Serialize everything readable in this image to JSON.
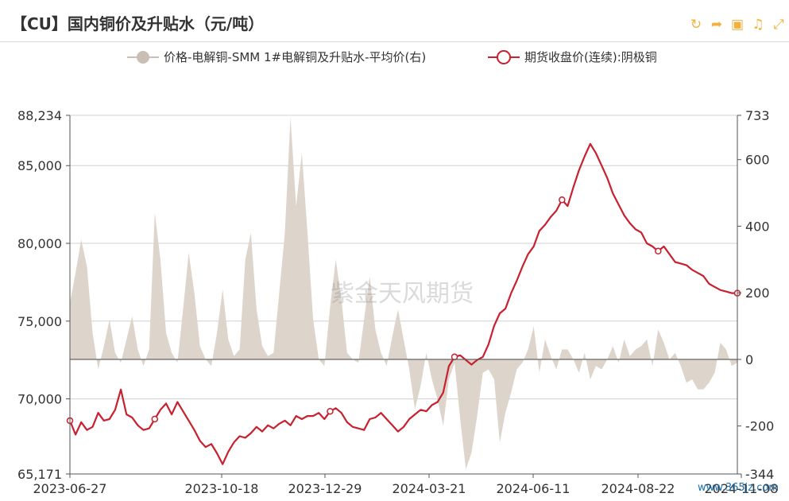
{
  "header": {
    "title": "【CU】国内铜价及升贴水（元/吨）",
    "icons": [
      "refresh-icon",
      "share-icon",
      "image-icon",
      "bell-icon",
      "expand-icon"
    ]
  },
  "watermark": "紫金天风期货",
  "source_mark": "www.365jz.com",
  "colors": {
    "area": "#ddd5cb",
    "line": "#c8202e",
    "grid": "#d0d0d0",
    "icon": "#f2b13c"
  },
  "chart_data": {
    "type": "line",
    "left_axis": {
      "min": 65171,
      "max": 88234,
      "ticks": [
        "65,171",
        "70,000",
        "75,000",
        "80,000",
        "85,000",
        "88,234"
      ]
    },
    "right_axis": {
      "min": -344,
      "max": 733,
      "ticks": [
        "-344",
        "-200",
        "0",
        "200",
        "400",
        "600",
        "733"
      ]
    },
    "x_axis": {
      "labels": [
        "2023-06-27",
        "2023-10-18",
        "2023-12-29",
        "2024-03-21",
        "2024-06-11",
        "2024-08-22",
        "2024-11-08"
      ]
    },
    "grid": "horizontal",
    "legend_position": "top-center",
    "series": [
      {
        "name": "价格-电解铜-SMM 1#电解铜及升贴水-平均价(右)",
        "kind": "area",
        "axis": "right",
        "color": "#ddd5cb",
        "points": [
          [
            0,
            170
          ],
          [
            2,
            260
          ],
          [
            4,
            360
          ],
          [
            6,
            280
          ],
          [
            8,
            80
          ],
          [
            10,
            -30
          ],
          [
            12,
            40
          ],
          [
            14,
            120
          ],
          [
            16,
            20
          ],
          [
            18,
            -10
          ],
          [
            20,
            60
          ],
          [
            22,
            130
          ],
          [
            24,
            30
          ],
          [
            26,
            -20
          ],
          [
            28,
            30
          ],
          [
            30,
            440
          ],
          [
            32,
            300
          ],
          [
            34,
            80
          ],
          [
            36,
            20
          ],
          [
            38,
            -10
          ],
          [
            40,
            150
          ],
          [
            42,
            320
          ],
          [
            44,
            200
          ],
          [
            46,
            40
          ],
          [
            48,
            0
          ],
          [
            50,
            -20
          ],
          [
            52,
            80
          ],
          [
            54,
            210
          ],
          [
            56,
            60
          ],
          [
            58,
            10
          ],
          [
            60,
            30
          ],
          [
            62,
            300
          ],
          [
            64,
            380
          ],
          [
            66,
            150
          ],
          [
            68,
            40
          ],
          [
            70,
            10
          ],
          [
            72,
            20
          ],
          [
            74,
            200
          ],
          [
            76,
            380
          ],
          [
            78,
            728
          ],
          [
            80,
            460
          ],
          [
            82,
            620
          ],
          [
            84,
            380
          ],
          [
            86,
            120
          ],
          [
            88,
            0
          ],
          [
            90,
            -20
          ],
          [
            92,
            160
          ],
          [
            94,
            300
          ],
          [
            96,
            180
          ],
          [
            98,
            20
          ],
          [
            100,
            0
          ],
          [
            102,
            -10
          ],
          [
            104,
            120
          ],
          [
            106,
            250
          ],
          [
            108,
            90
          ],
          [
            110,
            20
          ],
          [
            112,
            -20
          ],
          [
            114,
            70
          ],
          [
            116,
            150
          ],
          [
            118,
            60
          ],
          [
            120,
            -30
          ],
          [
            122,
            -150
          ],
          [
            124,
            -80
          ],
          [
            126,
            20
          ],
          [
            128,
            -60
          ],
          [
            130,
            -120
          ],
          [
            132,
            -200
          ],
          [
            134,
            -60
          ],
          [
            136,
            -10
          ],
          [
            138,
            -180
          ],
          [
            140,
            -330
          ],
          [
            142,
            -280
          ],
          [
            144,
            -170
          ],
          [
            146,
            -40
          ],
          [
            148,
            -30
          ],
          [
            150,
            -60
          ],
          [
            152,
            -250
          ],
          [
            154,
            -160
          ],
          [
            156,
            -100
          ],
          [
            158,
            -30
          ],
          [
            160,
            -10
          ],
          [
            162,
            30
          ],
          [
            164,
            100
          ],
          [
            166,
            -40
          ],
          [
            168,
            60
          ],
          [
            170,
            10
          ],
          [
            172,
            -30
          ],
          [
            174,
            30
          ],
          [
            176,
            30
          ],
          [
            178,
            0
          ],
          [
            180,
            -40
          ],
          [
            182,
            20
          ],
          [
            184,
            -60
          ],
          [
            186,
            -20
          ],
          [
            188,
            -30
          ],
          [
            190,
            0
          ],
          [
            192,
            40
          ],
          [
            194,
            -10
          ],
          [
            196,
            60
          ],
          [
            198,
            10
          ],
          [
            200,
            30
          ],
          [
            202,
            40
          ],
          [
            204,
            60
          ],
          [
            206,
            -20
          ],
          [
            208,
            90
          ],
          [
            210,
            50
          ],
          [
            212,
            0
          ],
          [
            214,
            20
          ],
          [
            216,
            -20
          ],
          [
            218,
            -70
          ],
          [
            220,
            -60
          ],
          [
            222,
            -90
          ],
          [
            224,
            -90
          ],
          [
            226,
            -70
          ],
          [
            228,
            -40
          ],
          [
            230,
            50
          ],
          [
            232,
            30
          ],
          [
            234,
            -20
          ],
          [
            236,
            -10
          ]
        ]
      },
      {
        "name": "期货收盘价(连续):阴极铜",
        "kind": "line",
        "axis": "left",
        "color": "#c8202e",
        "points": [
          [
            0,
            68600
          ],
          [
            2,
            67700
          ],
          [
            4,
            68500
          ],
          [
            6,
            68000
          ],
          [
            8,
            68200
          ],
          [
            10,
            69100
          ],
          [
            12,
            68600
          ],
          [
            14,
            68700
          ],
          [
            16,
            69300
          ],
          [
            18,
            70600
          ],
          [
            20,
            69000
          ],
          [
            22,
            68800
          ],
          [
            24,
            68300
          ],
          [
            26,
            68000
          ],
          [
            28,
            68100
          ],
          [
            30,
            68700
          ],
          [
            32,
            69300
          ],
          [
            34,
            69700
          ],
          [
            36,
            69000
          ],
          [
            38,
            69800
          ],
          [
            40,
            69200
          ],
          [
            42,
            68600
          ],
          [
            44,
            68000
          ],
          [
            46,
            67300
          ],
          [
            48,
            66900
          ],
          [
            50,
            67100
          ],
          [
            52,
            66500
          ],
          [
            54,
            65800
          ],
          [
            56,
            66600
          ],
          [
            58,
            67200
          ],
          [
            60,
            67600
          ],
          [
            62,
            67500
          ],
          [
            64,
            67800
          ],
          [
            66,
            68200
          ],
          [
            68,
            67900
          ],
          [
            70,
            68300
          ],
          [
            72,
            68100
          ],
          [
            74,
            68400
          ],
          [
            76,
            68600
          ],
          [
            78,
            68300
          ],
          [
            80,
            68900
          ],
          [
            82,
            68700
          ],
          [
            84,
            68900
          ],
          [
            86,
            68900
          ],
          [
            88,
            69100
          ],
          [
            90,
            68700
          ],
          [
            92,
            69200
          ],
          [
            94,
            69400
          ],
          [
            96,
            69100
          ],
          [
            98,
            68500
          ],
          [
            100,
            68200
          ],
          [
            102,
            68100
          ],
          [
            104,
            68000
          ],
          [
            106,
            68700
          ],
          [
            108,
            68800
          ],
          [
            110,
            69100
          ],
          [
            112,
            68700
          ],
          [
            114,
            68300
          ],
          [
            116,
            67900
          ],
          [
            118,
            68200
          ],
          [
            120,
            68700
          ],
          [
            122,
            69000
          ],
          [
            124,
            69300
          ],
          [
            126,
            69200
          ],
          [
            128,
            69600
          ],
          [
            130,
            69800
          ],
          [
            132,
            70400
          ],
          [
            134,
            72100
          ],
          [
            136,
            72700
          ],
          [
            138,
            72800
          ],
          [
            140,
            72500
          ],
          [
            142,
            72200
          ],
          [
            144,
            72500
          ],
          [
            146,
            72700
          ],
          [
            148,
            73500
          ],
          [
            150,
            74700
          ],
          [
            152,
            75500
          ],
          [
            154,
            75800
          ],
          [
            156,
            76800
          ],
          [
            158,
            77600
          ],
          [
            160,
            78500
          ],
          [
            162,
            79300
          ],
          [
            164,
            79800
          ],
          [
            166,
            80800
          ],
          [
            168,
            81200
          ],
          [
            170,
            81700
          ],
          [
            172,
            82100
          ],
          [
            174,
            82800
          ],
          [
            176,
            82400
          ],
          [
            178,
            83600
          ],
          [
            180,
            84700
          ],
          [
            182,
            85600
          ],
          [
            184,
            86400
          ],
          [
            186,
            85800
          ],
          [
            188,
            85000
          ],
          [
            190,
            84200
          ],
          [
            192,
            83200
          ],
          [
            194,
            82500
          ],
          [
            196,
            81800
          ],
          [
            198,
            81300
          ],
          [
            200,
            80900
          ],
          [
            202,
            80700
          ],
          [
            204,
            80000
          ],
          [
            206,
            79800
          ],
          [
            208,
            79500
          ],
          [
            210,
            79800
          ],
          [
            212,
            79300
          ],
          [
            214,
            78800
          ],
          [
            216,
            78700
          ],
          [
            218,
            78600
          ],
          [
            220,
            78300
          ],
          [
            222,
            78100
          ],
          [
            224,
            77900
          ],
          [
            226,
            77400
          ],
          [
            228,
            77200
          ],
          [
            230,
            77000
          ],
          [
            232,
            76900
          ],
          [
            234,
            76800
          ],
          [
            236,
            76800
          ]
        ]
      }
    ]
  }
}
